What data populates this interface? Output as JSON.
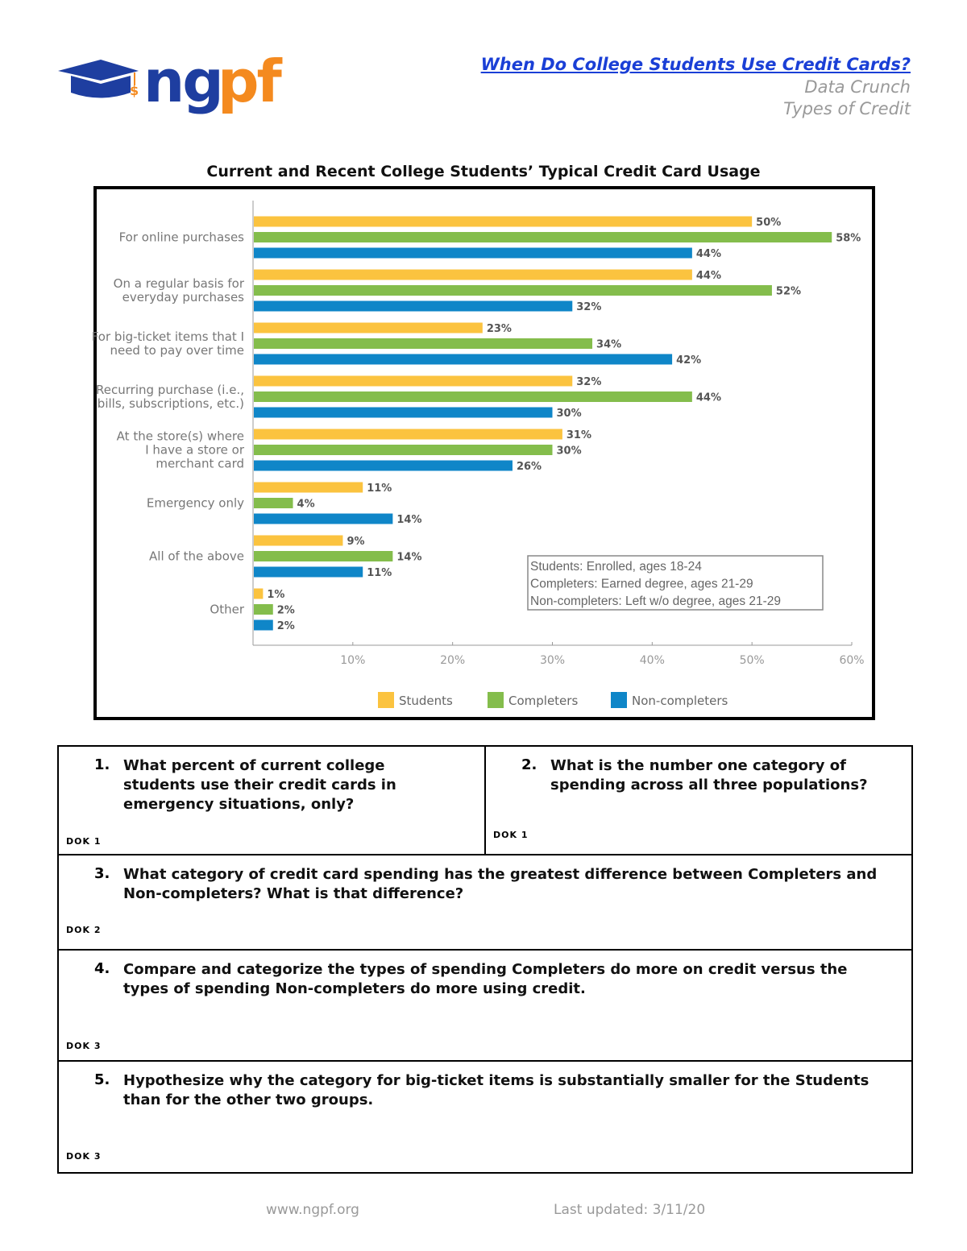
{
  "header": {
    "logo_text": "ngpf",
    "title": "When Do College Students Use Credit Cards?",
    "subtitle1": "Data Crunch",
    "subtitle2": "Types of Credit"
  },
  "colors": {
    "students": "#fbc33f",
    "completers": "#84bd4c",
    "non_completers": "#0f86c8",
    "logo_blue": "#1e3ea0",
    "logo_orange": "#f48a1f"
  },
  "chart_data": {
    "type": "bar",
    "orientation": "horizontal",
    "title": "Current and Recent College Students’ Typical Credit Card Usage",
    "categories": [
      "For online purchases",
      "On a regular basis for everyday purchases",
      "For big-ticket items that I need to pay over time",
      "Recurring purchase (i.e., bills, subscriptions, etc.)",
      "At the store(s) where I have a store or merchant card",
      "Emergency only",
      "All of the above",
      "Other"
    ],
    "category_lines": [
      [
        "For online purchases"
      ],
      [
        "On a regular basis for",
        "everyday purchases"
      ],
      [
        "For big-ticket items that I",
        "need to pay over time"
      ],
      [
        "Recurring purchase (i.e.,",
        "bills, subscriptions, etc.)"
      ],
      [
        "At the store(s) where",
        "I have a store or",
        "merchant card"
      ],
      [
        "Emergency only"
      ],
      [
        "All of the above"
      ],
      [
        "Other"
      ]
    ],
    "series": [
      {
        "name": "Students",
        "values": [
          50,
          44,
          23,
          32,
          31,
          11,
          9,
          1
        ]
      },
      {
        "name": "Completers",
        "values": [
          58,
          52,
          34,
          44,
          30,
          4,
          14,
          2
        ]
      },
      {
        "name": "Non-completers",
        "values": [
          44,
          32,
          42,
          30,
          26,
          14,
          11,
          2
        ]
      }
    ],
    "xlim": [
      0,
      60
    ],
    "xticks": [
      "10%",
      "20%",
      "30%",
      "40%",
      "50%",
      "60%"
    ],
    "grid": false,
    "legend": "bottom",
    "annotation": [
      "Students: Enrolled, ages 18-24",
      "Completers: Earned degree, ages 21-29",
      "Non-completers: Left w/o degree, ages 21-29"
    ]
  },
  "questions": [
    {
      "num": "1.",
      "text": "What percent of current college students use their credit cards in emergency situations, only?",
      "dok": "DOK 1"
    },
    {
      "num": "2.",
      "text": "What is the number one category of spending across all three populations?",
      "dok": "DOK 1"
    },
    {
      "num": "3.",
      "text": "What category of credit card spending has the greatest difference between Completers and Non-completers? What is that difference?",
      "dok": "DOK 2"
    },
    {
      "num": "4.",
      "text": "Compare and categorize the types of spending Completers do more on credit versus the types of spending Non-completers do more using credit.",
      "dok": "DOK 3"
    },
    {
      "num": "5.",
      "text": "Hypothesize why the category for big-ticket items is substantially smaller for the Students than for the other two groups.",
      "dok": "DOK 3"
    }
  ],
  "footer": {
    "website": "www.ngpf.org",
    "updated": "Last updated: 3/11/20"
  }
}
